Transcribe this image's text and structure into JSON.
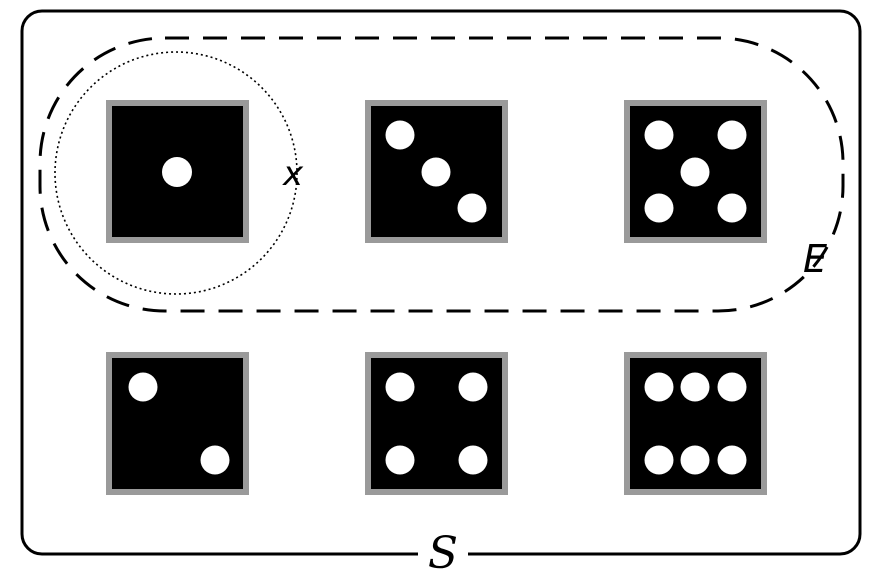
{
  "sample_space": {
    "label": "S"
  },
  "event": {
    "label": "E"
  },
  "outcome": {
    "label": "x"
  },
  "dice": [
    {
      "value": 1,
      "in_event": true,
      "highlighted": true
    },
    {
      "value": 3,
      "in_event": true,
      "highlighted": false
    },
    {
      "value": 5,
      "in_event": true,
      "highlighted": false
    },
    {
      "value": 2,
      "in_event": false,
      "highlighted": false
    },
    {
      "value": 4,
      "in_event": false,
      "highlighted": false
    },
    {
      "value": 6,
      "in_event": false,
      "highlighted": false
    }
  ]
}
